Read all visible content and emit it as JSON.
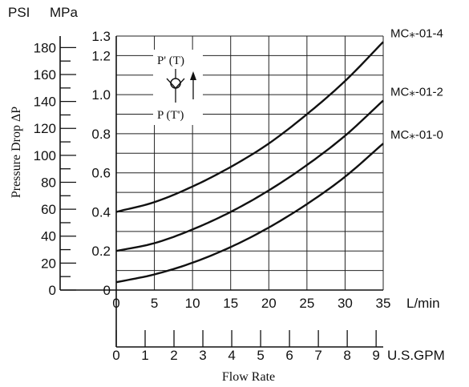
{
  "chart_data": {
    "type": "line",
    "title": "",
    "xlabel": "Flow Rate",
    "ylabel": "Pressure Drop ΔP",
    "x_unit_primary": "L/min",
    "x_unit_secondary": "U.S.GPM",
    "y_unit_left": "PSI",
    "y_unit_right": "MPa",
    "xlim": [
      0,
      35
    ],
    "ylim": [
      0,
      1.3
    ],
    "x_ticks": [
      "0",
      "5",
      "10",
      "15",
      "20",
      "25",
      "30",
      "35"
    ],
    "gpm_ticks": [
      "0",
      "1",
      "2",
      "3",
      "4",
      "5",
      "6",
      "7",
      "8",
      "9"
    ],
    "mpa_ticks": [
      "0",
      "0.2",
      "0.4",
      "0.6",
      "0.8",
      "1.0",
      "1.2",
      "1.3"
    ],
    "psi_ticks": [
      "0",
      "20",
      "40",
      "60",
      "80",
      "100",
      "120",
      "140",
      "160",
      "180"
    ],
    "grid": true,
    "series": [
      {
        "name": "MC⁎-01-4",
        "x": [
          0,
          5,
          10,
          15,
          20,
          25,
          30,
          35
        ],
        "y": [
          0.4,
          0.45,
          0.53,
          0.63,
          0.75,
          0.9,
          1.07,
          1.27
        ]
      },
      {
        "name": "MC⁎-01-2",
        "x": [
          0,
          5,
          10,
          15,
          20,
          25,
          30,
          35
        ],
        "y": [
          0.2,
          0.24,
          0.31,
          0.4,
          0.51,
          0.64,
          0.79,
          0.97
        ]
      },
      {
        "name": "MC⁎-01-0",
        "x": [
          0,
          5,
          10,
          15,
          20,
          25,
          30,
          35
        ],
        "y": [
          0.04,
          0.08,
          0.14,
          0.22,
          0.32,
          0.44,
          0.58,
          0.75
        ]
      }
    ],
    "inset": {
      "top_port": "P' (T)",
      "bottom_port": "P (T')"
    }
  }
}
